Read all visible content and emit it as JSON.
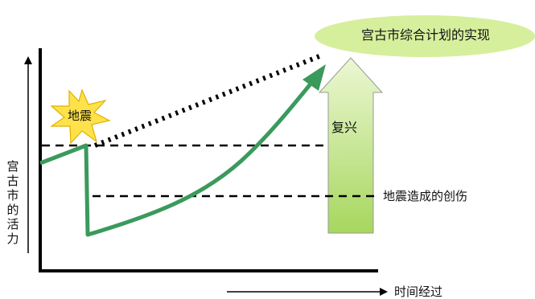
{
  "diagram": {
    "goal_label": "宫古市综合计划的实现",
    "earthquake_label": "地震",
    "recovery_label": "复兴",
    "damage_label": "地震造成的创伤",
    "x_axis_label": "时间经过",
    "y_axis_label": "宫古市的活力"
  },
  "colors": {
    "vitality_curve": "#3a9a5c",
    "recovery_arrow_top": "#ecf7d3",
    "recovery_arrow_bottom": "#a6d75e",
    "goal_ellipse": "#d6ef9c",
    "burst_fill": "#ffe24a",
    "burst_stroke": "#ddb200"
  }
}
